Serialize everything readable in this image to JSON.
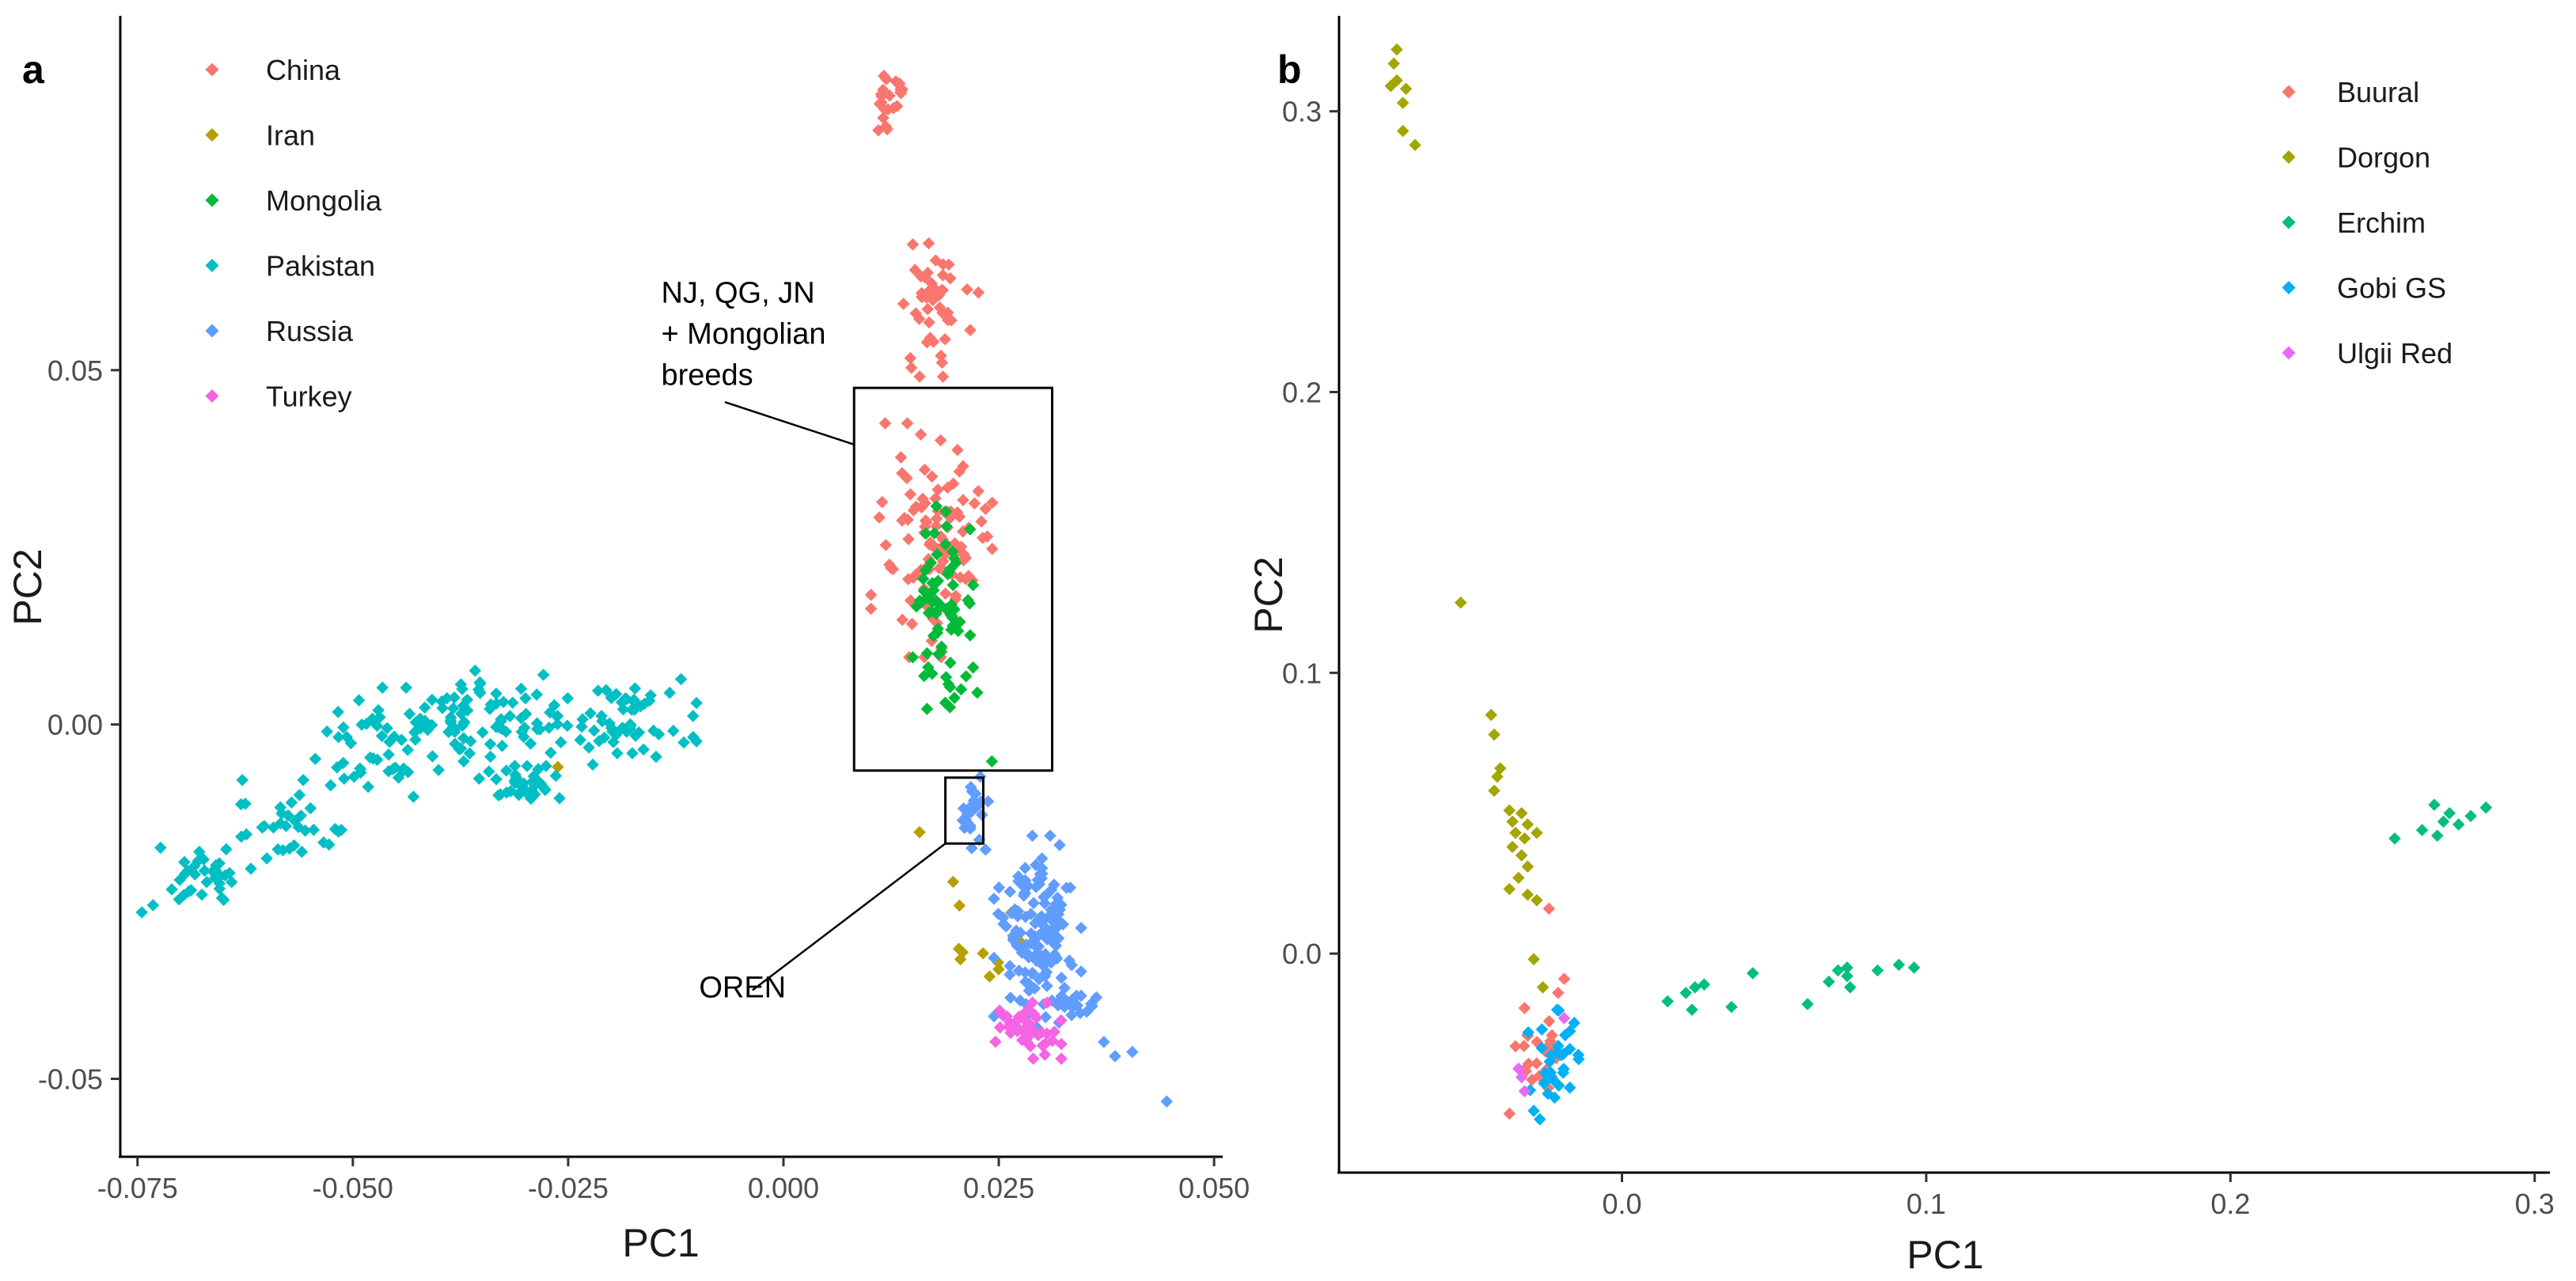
{
  "chart_data": [
    {
      "panel": "a",
      "type": "scatter",
      "xlabel": "PC1",
      "ylabel": "PC2",
      "xlim": [
        -0.077,
        0.051
      ],
      "ylim": [
        -0.061,
        0.1
      ],
      "xticks": [
        {
          "value": -0.075,
          "label": "-0.075"
        },
        {
          "value": -0.05,
          "label": "-0.050"
        },
        {
          "value": -0.025,
          "label": "-0.025"
        },
        {
          "value": 0.0,
          "label": "0.000"
        },
        {
          "value": 0.025,
          "label": "0.025"
        },
        {
          "value": 0.05,
          "label": "0.050"
        }
      ],
      "yticks": [
        {
          "value": 0.05,
          "label": "0.05"
        },
        {
          "value": 0.0,
          "label": "0.00"
        },
        {
          "value": -0.05,
          "label": "-0.05"
        }
      ],
      "legend_position": "top-left",
      "series": [
        {
          "name": "China",
          "color": "#F8766D",
          "clusters": [
            {
              "center": [
                0.0123,
                0.088
              ],
              "sd": [
                0.0009,
                0.0025
              ],
              "n": 22
            },
            {
              "center": [
                0.0178,
                0.058
              ],
              "sd": [
                0.0022,
                0.0045
              ],
              "n": 48
            },
            {
              "center": [
                0.0172,
                0.026
              ],
              "sd": [
                0.0032,
                0.0075
              ],
              "n": 110
            }
          ]
        },
        {
          "name": "Iran",
          "color": "#B79F00",
          "clusters": [
            {
              "center": [
                0.0225,
                -0.031
              ],
              "sd": [
                0.0025,
                0.0028
              ],
              "n": 10
            }
          ],
          "points": [
            [
              -0.0262,
              -0.006
            ],
            [
              0.0158,
              -0.0152
            ],
            [
              0.0197,
              -0.0222
            ]
          ]
        },
        {
          "name": "Mongolia",
          "color": "#00BA38",
          "clusters": [
            {
              "center": [
                0.0185,
                0.0165
              ],
              "sd": [
                0.0016,
                0.0065
              ],
              "n": 70
            }
          ],
          "points": [
            [
              0.0212,
              0.0068
            ],
            [
              0.0225,
              0.0045
            ],
            [
              0.0242,
              -0.0052
            ]
          ]
        },
        {
          "name": "Pakistan",
          "color": "#00BFC4",
          "clusters": [
            {
              "center": [
                -0.068,
                -0.021
              ],
              "sd": [
                0.0028,
                0.0022
              ],
              "n": 35
            },
            {
              "center": [
                -0.057,
                -0.014
              ],
              "sd": [
                0.0035,
                0.0028
              ],
              "n": 35
            },
            {
              "center": [
                -0.046,
                -0.0025
              ],
              "sd": [
                0.0038,
                0.0035
              ],
              "n": 50
            },
            {
              "center": [
                -0.035,
                0.001
              ],
              "sd": [
                0.0045,
                0.0032
              ],
              "n": 70
            },
            {
              "center": [
                -0.0305,
                -0.0085
              ],
              "sd": [
                0.0022,
                0.0012
              ],
              "n": 35
            },
            {
              "center": [
                -0.02,
                0.0005
              ],
              "sd": [
                0.0045,
                0.0028
              ],
              "n": 65
            }
          ],
          "points": [
            [
              -0.0745,
              -0.0265
            ],
            [
              -0.0732,
              -0.0255
            ],
            [
              -0.0105,
              0.0012
            ]
          ]
        },
        {
          "name": "Russia",
          "color": "#619CFF",
          "clusters": [
            {
              "center": [
                0.0222,
                -0.0115
              ],
              "sd": [
                0.0009,
                0.0028
              ],
              "n": 25
            },
            {
              "center": [
                0.0295,
                -0.03
              ],
              "sd": [
                0.0023,
                0.0065
              ],
              "n": 130
            },
            {
              "center": [
                0.0335,
                -0.0395
              ],
              "sd": [
                0.0018,
                0.0018
              ],
              "n": 20
            }
          ],
          "points": [
            [
              0.0405,
              -0.0462
            ],
            [
              0.0445,
              -0.0532
            ],
            [
              0.0372,
              -0.0448
            ],
            [
              0.0385,
              -0.0468
            ]
          ]
        },
        {
          "name": "Turkey",
          "color": "#F564E3",
          "clusters": [
            {
              "center": [
                0.0283,
                -0.0432
              ],
              "sd": [
                0.0018,
                0.0018
              ],
              "n": 45
            }
          ]
        }
      ],
      "annotations": [
        {
          "id": "box-nj",
          "rect": [
            0.0082,
            0.0475,
            0.0312,
            -0.0065
          ],
          "text_lines": [
            "NJ, QG, JN",
            "+ Mongolian",
            "breeds"
          ],
          "text_at": [
            -0.0142,
            0.0595
          ],
          "leader_from": [
            -0.0068,
            0.0455
          ],
          "leader_to": [
            0.0082,
            0.0395
          ]
        },
        {
          "id": "box-oren",
          "rect": [
            0.0188,
            -0.0075,
            0.0232,
            -0.0168
          ],
          "text_lines": [
            "OREN"
          ],
          "text_at": [
            -0.0098,
            -0.0385
          ],
          "leader_from": [
            -0.0036,
            -0.0375
          ],
          "leader_to": [
            0.0188,
            -0.0168
          ]
        }
      ]
    },
    {
      "panel": "b",
      "type": "scatter",
      "xlabel": "PC1",
      "ylabel": "PC2",
      "xlim": [
        -0.093,
        0.305
      ],
      "ylim": [
        -0.078,
        0.334
      ],
      "xticks": [
        {
          "value": 0.0,
          "label": "0.0"
        },
        {
          "value": 0.1,
          "label": "0.1"
        },
        {
          "value": 0.2,
          "label": "0.2"
        },
        {
          "value": 0.3,
          "label": "0.3"
        }
      ],
      "yticks": [
        {
          "value": 0.3,
          "label": "0.3"
        },
        {
          "value": 0.2,
          "label": "0.2"
        },
        {
          "value": 0.1,
          "label": "0.1"
        },
        {
          "value": 0.0,
          "label": "0.0"
        }
      ],
      "legend_position": "top-right",
      "series": [
        {
          "name": "Buural",
          "color": "#F8766D",
          "clusters": [
            {
              "center": [
                -0.027,
                -0.037
              ],
              "sd": [
                0.004,
                0.008
              ],
              "n": 22
            }
          ],
          "points": [
            [
              -0.024,
              0.016
            ],
            [
              -0.019,
              -0.009
            ],
            [
              -0.035,
              -0.033
            ],
            [
              -0.037,
              -0.057
            ],
            [
              -0.021,
              -0.014
            ]
          ]
        },
        {
          "name": "Dorgon",
          "color": "#A3A500",
          "points": [
            [
              -0.074,
              0.322
            ],
            [
              -0.075,
              0.317
            ],
            [
              -0.072,
              0.303
            ],
            [
              -0.074,
              0.311
            ],
            [
              -0.071,
              0.308
            ],
            [
              -0.076,
              0.309
            ],
            [
              -0.072,
              0.293
            ],
            [
              -0.068,
              0.288
            ],
            [
              -0.053,
              0.125
            ],
            [
              -0.043,
              0.085
            ],
            [
              -0.042,
              0.078
            ],
            [
              -0.04,
              0.066
            ],
            [
              -0.041,
              0.063
            ],
            [
              -0.042,
              0.058
            ],
            [
              -0.037,
              0.051
            ],
            [
              -0.033,
              0.05
            ],
            [
              -0.036,
              0.047
            ],
            [
              -0.031,
              0.046
            ],
            [
              -0.035,
              0.043
            ],
            [
              -0.032,
              0.041
            ],
            [
              -0.028,
              0.043
            ],
            [
              -0.036,
              0.038
            ],
            [
              -0.033,
              0.035
            ],
            [
              -0.031,
              0.031
            ],
            [
              -0.034,
              0.027
            ],
            [
              -0.037,
              0.023
            ],
            [
              -0.031,
              0.021
            ],
            [
              -0.028,
              0.019
            ],
            [
              -0.029,
              -0.002
            ],
            [
              -0.026,
              -0.012
            ]
          ]
        },
        {
          "name": "Erchim",
          "color": "#00BF7D",
          "points": [
            [
              0.015,
              -0.017
            ],
            [
              0.021,
              -0.014
            ],
            [
              0.024,
              -0.012
            ],
            [
              0.023,
              -0.02
            ],
            [
              0.027,
              -0.011
            ],
            [
              0.036,
              -0.019
            ],
            [
              0.043,
              -0.007
            ],
            [
              0.061,
              -0.018
            ],
            [
              0.068,
              -0.01
            ],
            [
              0.071,
              -0.006
            ],
            [
              0.074,
              -0.008
            ],
            [
              0.075,
              -0.012
            ],
            [
              0.074,
              -0.005
            ],
            [
              0.084,
              -0.006
            ],
            [
              0.091,
              -0.004
            ],
            [
              0.096,
              -0.005
            ],
            [
              0.254,
              0.041
            ],
            [
              0.263,
              0.044
            ],
            [
              0.267,
              0.053
            ],
            [
              0.27,
              0.047
            ],
            [
              0.272,
              0.05
            ],
            [
              0.268,
              0.042
            ],
            [
              0.275,
              0.046
            ],
            [
              0.279,
              0.049
            ],
            [
              0.284,
              0.052
            ]
          ]
        },
        {
          "name": "Gobi GS",
          "color": "#00B0F6",
          "clusters": [
            {
              "center": [
                -0.022,
                -0.037
              ],
              "sd": [
                0.004,
                0.008
              ],
              "n": 30
            }
          ],
          "points": [
            [
              -0.027,
              -0.059
            ],
            [
              -0.029,
              -0.056
            ]
          ]
        },
        {
          "name": "Ulgii Red",
          "color": "#E76BF3",
          "points": [
            [
              -0.033,
              -0.044
            ],
            [
              -0.034,
              -0.041
            ],
            [
              -0.032,
              -0.049
            ],
            [
              -0.019,
              -0.023
            ]
          ]
        }
      ]
    }
  ]
}
